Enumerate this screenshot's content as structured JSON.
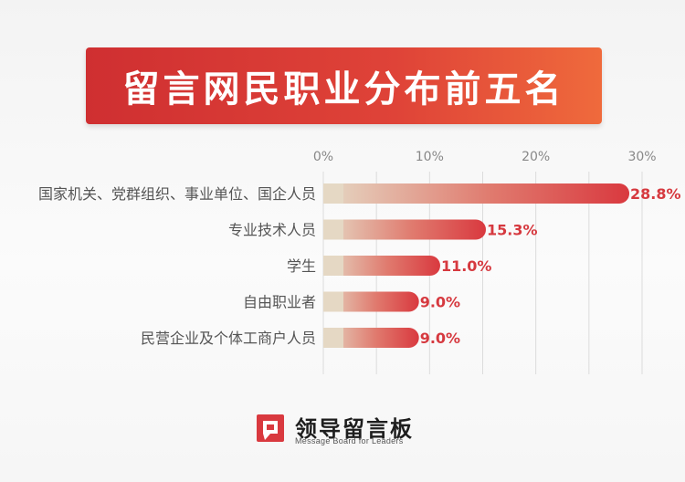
{
  "title": "留言网民职业分布前五名",
  "chart_data": {
    "type": "bar",
    "orientation": "horizontal",
    "categories": [
      "国家机关、党群组织、事业单位、国企人员",
      "专业技术人员",
      "学生",
      "自由职业者",
      "民营企业及个体工商户人员"
    ],
    "values": [
      28.8,
      15.3,
      11.0,
      9.0,
      9.0
    ],
    "value_labels": [
      "28.8%",
      "15.3%",
      "11.0%",
      "9.0%",
      "9.0%"
    ],
    "xticks": [
      "0%",
      "10%",
      "20%",
      "30%"
    ],
    "tick_values": [
      0,
      10,
      20,
      30
    ],
    "xlim": [
      0,
      30
    ],
    "grid": true,
    "colors": {
      "bar_start": "#e5d8c4",
      "bar_end": "#d9393f",
      "label": "#d6393f",
      "tick": "#888888",
      "category": "#555555",
      "grid": "#dcdcdc"
    }
  },
  "logo": {
    "name": "领导留言板",
    "subtitle": "Message Board for Leaders",
    "icon": "message-board-logo-icon",
    "color": "#d9393f"
  }
}
